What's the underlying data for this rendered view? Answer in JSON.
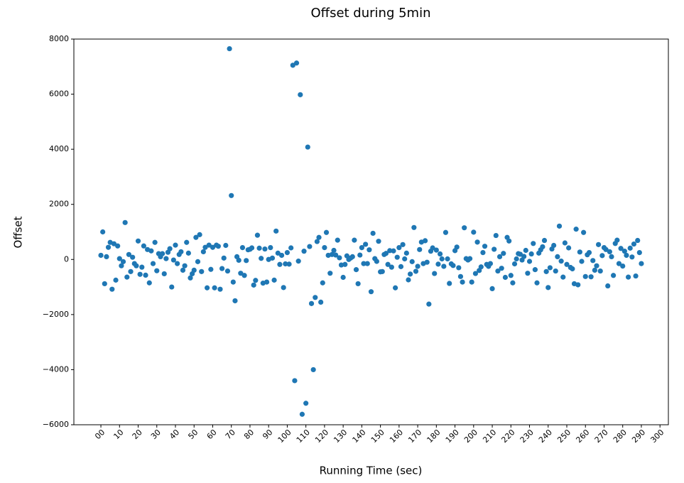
{
  "chart_data": {
    "type": "scatter",
    "title": "Offset during 5min",
    "x_label": "Running Time (sec)",
    "y_label": "Offset",
    "color": "#1f77b4",
    "x": [
      0,
      1,
      2,
      3,
      4,
      5,
      6,
      7,
      8,
      9,
      10,
      11,
      12,
      13,
      14,
      15,
      16,
      17,
      18,
      19,
      20,
      21,
      22,
      23,
      24,
      25,
      26,
      27,
      28,
      29,
      30,
      31,
      32,
      33,
      34,
      35,
      36,
      37,
      38,
      39,
      40,
      41,
      42,
      43,
      44,
      45,
      46,
      47,
      48,
      49,
      50,
      51,
      52,
      53,
      54,
      55,
      56,
      57,
      58,
      59,
      60,
      61,
      62,
      63,
      64,
      65,
      66,
      67,
      68,
      69,
      70,
      71,
      72,
      73,
      74,
      75,
      76,
      77,
      78,
      79,
      80,
      81,
      82,
      83,
      84,
      85,
      86,
      87,
      88,
      89,
      90,
      91,
      92,
      93,
      94,
      95,
      96,
      97,
      98,
      99,
      100,
      101,
      102,
      103,
      104,
      105,
      106,
      107,
      108,
      109,
      110,
      111,
      112,
      113,
      114,
      115,
      116,
      117,
      118,
      119,
      120,
      121,
      122,
      123,
      124,
      125,
      126,
      127,
      128,
      129,
      130,
      131,
      132,
      133,
      134,
      135,
      136,
      137,
      138,
      139,
      140,
      141,
      142,
      143,
      144,
      145,
      146,
      147,
      148,
      149,
      150,
      151,
      152,
      153,
      154,
      155,
      156,
      157,
      158,
      159,
      160,
      161,
      162,
      163,
      164,
      165,
      166,
      167,
      168,
      169,
      170,
      171,
      172,
      173,
      174,
      175,
      176,
      177,
      178,
      179,
      180,
      181,
      182,
      183,
      184,
      185,
      186,
      187,
      188,
      189,
      190,
      191,
      192,
      193,
      194,
      195,
      196,
      197,
      198,
      199,
      200,
      201,
      202,
      203,
      204,
      205,
      206,
      207,
      208,
      209,
      210,
      211,
      212,
      213,
      214,
      215,
      216,
      217,
      218,
      219,
      220,
      221,
      222,
      223,
      224,
      225,
      226,
      227,
      228,
      229,
      230,
      231,
      232,
      233,
      234,
      235,
      236,
      237,
      238,
      239,
      240,
      241,
      242,
      243,
      244,
      245,
      246,
      247,
      248,
      249,
      250,
      251,
      252,
      253,
      254,
      255,
      256,
      257,
      258,
      259,
      260,
      261,
      262,
      263,
      264,
      265,
      266,
      267,
      268,
      269,
      270,
      271,
      272,
      273,
      274,
      275,
      276,
      277,
      278,
      279,
      280,
      281,
      282,
      283,
      284,
      285,
      286,
      287,
      288,
      289,
      290
    ],
    "values": [
      150,
      1000,
      -880,
      100,
      440,
      620,
      -1080,
      570,
      -750,
      490,
      30,
      -230,
      -80,
      1340,
      -640,
      180,
      -440,
      80,
      -150,
      -230,
      670,
      -540,
      -280,
      490,
      -570,
      360,
      -850,
      310,
      -150,
      620,
      -410,
      210,
      100,
      210,
      -520,
      30,
      260,
      390,
      -1000,
      -20,
      520,
      -150,
      180,
      280,
      -390,
      -230,
      620,
      230,
      -670,
      -520,
      -390,
      800,
      -80,
      900,
      -440,
      280,
      440,
      -1030,
      520,
      -360,
      440,
      -1030,
      520,
      480,
      -1080,
      -330,
      50,
      510,
      -420,
      7650,
      2320,
      -820,
      -1500,
      100,
      -30,
      -500,
      430,
      -580,
      -40,
      350,
      370,
      420,
      -930,
      -760,
      880,
      410,
      40,
      -860,
      380,
      -820,
      0,
      430,
      50,
      -750,
      1030,
      230,
      -180,
      150,
      -1020,
      -160,
      250,
      -170,
      420,
      7050,
      -4400,
      7130,
      -60,
      5980,
      -5620,
      300,
      -5220,
      4080,
      470,
      -1600,
      -4000,
      -1380,
      650,
      800,
      -1550,
      -850,
      430,
      980,
      150,
      -500,
      180,
      330,
      160,
      700,
      60,
      -200,
      -650,
      -180,
      130,
      0,
      50,
      100,
      700,
      -370,
      -880,
      160,
      430,
      -150,
      550,
      -150,
      350,
      -1170,
      950,
      30,
      -70,
      660,
      -450,
      -440,
      180,
      220,
      -180,
      320,
      -280,
      310,
      -1030,
      80,
      430,
      -260,
      540,
      20,
      230,
      -740,
      -530,
      -80,
      1160,
      -430,
      -250,
      360,
      630,
      -150,
      680,
      -100,
      -1620,
      300,
      420,
      -510,
      340,
      -170,
      200,
      20,
      -250,
      980,
      20,
      -870,
      -160,
      -220,
      320,
      450,
      -300,
      -620,
      -820,
      1150,
      30,
      -20,
      30,
      -820,
      990,
      -510,
      630,
      -400,
      -270,
      250,
      480,
      -180,
      -250,
      -150,
      -1060,
      370,
      870,
      -420,
      100,
      -320,
      220,
      -650,
      800,
      670,
      -580,
      -850,
      -160,
      20,
      210,
      190,
      -20,
      110,
      330,
      -500,
      -70,
      200,
      580,
      -370,
      -850,
      230,
      350,
      460,
      690,
      -440,
      -1020,
      -300,
      380,
      510,
      -420,
      100,
      1210,
      -60,
      -640,
      600,
      -180,
      420,
      -290,
      -340,
      -880,
      1100,
      -920,
      270,
      -70,
      980,
      -620,
      170,
      250,
      -630,
      -40,
      -390,
      -230,
      540,
      -420,
      140,
      430,
      360,
      -960,
      280,
      100,
      -580,
      580,
      700,
      -150,
      400,
      -240,
      300,
      150,
      -640,
      410,
      90,
      560,
      -600,
      690,
      250,
      -150
    ],
    "xlim": [
      -14.5,
      304.5
    ],
    "xticks": [
      {
        "value": 0,
        "label": "00"
      },
      10,
      20,
      30,
      40,
      50,
      60,
      70,
      80,
      90,
      100,
      110,
      120,
      130,
      140,
      150,
      160,
      170,
      180,
      190,
      200,
      210,
      220,
      230,
      240,
      250,
      260,
      270,
      280,
      290,
      300
    ],
    "ylim": [
      -6000,
      8000
    ],
    "yticks": [
      {
        "value": -6000,
        "label": "−6000"
      },
      {
        "value": -4000,
        "label": "−4000"
      },
      {
        "value": -2000,
        "label": "−2000"
      },
      0,
      2000,
      4000,
      6000,
      8000
    ],
    "grid": false
  }
}
